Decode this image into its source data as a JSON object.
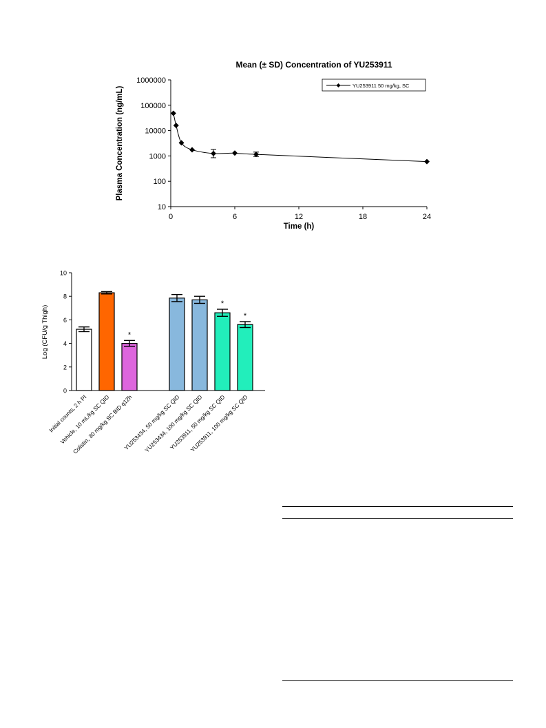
{
  "chart_data": [
    {
      "type": "line",
      "title": "Mean (± SD) Concentration of YU253911",
      "xlabel": "Time (h)",
      "ylabel": "Plasma Concentration (ng/mL)",
      "xlim": [
        0,
        24
      ],
      "xticks": [
        0,
        6,
        12,
        18,
        24
      ],
      "yscale": "log",
      "ylim": [
        10,
        1000000
      ],
      "yticks": [
        10,
        100,
        1000,
        10000,
        100000,
        1000000
      ],
      "grid": false,
      "legend_position": "top-right",
      "series": [
        {
          "name": "YU253911 50 mg/kg, SC",
          "color": "#000000",
          "x": [
            0.25,
            0.5,
            1,
            2,
            4,
            6,
            8,
            24
          ],
          "y": [
            48000,
            16000,
            3300,
            1750,
            1250,
            1300,
            1150,
            600
          ],
          "sd_low": [
            null,
            null,
            null,
            null,
            850,
            null,
            950,
            null
          ],
          "sd_high": [
            null,
            null,
            null,
            null,
            1800,
            null,
            1420,
            null
          ]
        }
      ]
    },
    {
      "type": "bar",
      "title": "",
      "xlabel": "",
      "ylabel": "Log (CFU/g Thigh)",
      "ylim": [
        0,
        10
      ],
      "yticks": [
        0,
        2,
        4,
        6,
        8,
        10
      ],
      "grid": false,
      "categories": [
        "Initial counts, 2 h PI",
        "Vehicle, 10 mL/kg SC QID",
        "Colistin, 30 mg/kg SC BID q12h",
        "YU253434, 50 mg/kg SC QID",
        "YU253434, 100 mg/kg SC QID",
        "YU253911, 50 mg/kg SC QID",
        "YU253911, 100 mg/kg SC QID"
      ],
      "values": [
        5.2,
        8.3,
        4.0,
        7.85,
        7.7,
        6.6,
        5.6
      ],
      "errors": [
        0.2,
        0.1,
        0.25,
        0.3,
        0.3,
        0.3,
        0.25
      ],
      "colors": [
        "#ffffff",
        "#ff6600",
        "#dd66dd",
        "#88b8dd",
        "#88b8dd",
        "#22eebb",
        "#22eebb"
      ],
      "annotations": [
        "",
        "",
        "*",
        "",
        "",
        "*",
        "*"
      ]
    }
  ]
}
